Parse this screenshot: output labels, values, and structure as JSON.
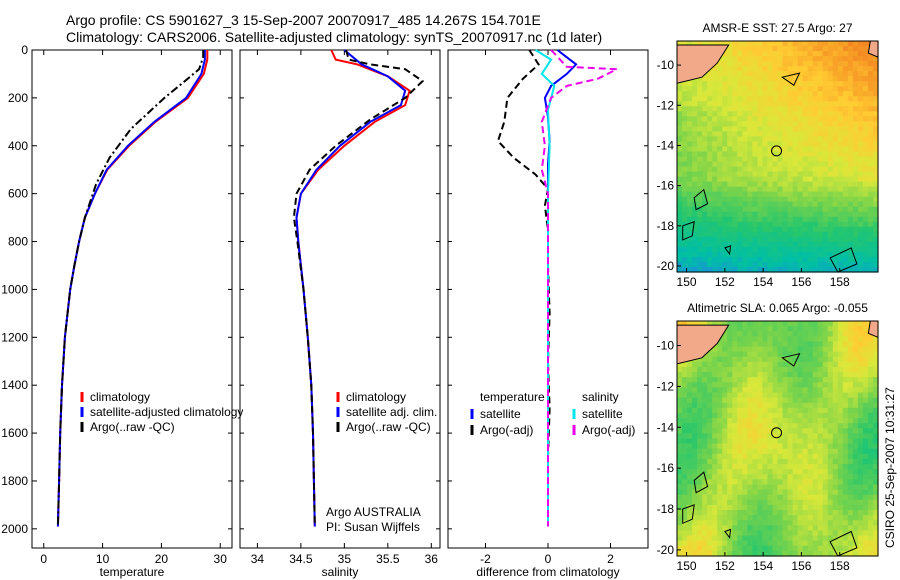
{
  "header": {
    "line1": "Argo profile: CS 5901627_3 15-Sep-2007 20070917_485 14.267S 154.701E",
    "line2": "Climatology: CARS2006. Satellite-adjusted climatology: synTS_20070917.nc (1d later)"
  },
  "side_text": "CSIRO 25-Sep-2007 10:31:27",
  "colors": {
    "red": "#ff0000",
    "blue": "#0000ff",
    "black": "#000000",
    "cyan": "#00e5ee",
    "magenta": "#ee00ee"
  },
  "chart_data": [
    {
      "id": "temperature",
      "type": "line",
      "xlabel": "temperature",
      "xlim": [
        -2,
        32
      ],
      "ylim": [
        2080,
        0
      ],
      "xticks": [
        0,
        10,
        20,
        30
      ],
      "yticks": [
        0,
        200,
        400,
        600,
        800,
        1000,
        1200,
        1400,
        1600,
        1800,
        2000
      ],
      "legend": [
        "climatology",
        "satellite-adjusted climatology",
        "Argo(..raw -QC)"
      ],
      "series": [
        {
          "name": "climatology",
          "color": "red",
          "dash": "solid",
          "points": [
            [
              27.8,
              0
            ],
            [
              27.8,
              40
            ],
            [
              27.2,
              100
            ],
            [
              24.5,
              200
            ],
            [
              19,
              300
            ],
            [
              14.5,
              400
            ],
            [
              10.8,
              500
            ],
            [
              8.7,
              600
            ],
            [
              7,
              700
            ],
            [
              6,
              800
            ],
            [
              5.2,
              900
            ],
            [
              4.5,
              1000
            ],
            [
              3.6,
              1200
            ],
            [
              3.1,
              1400
            ],
            [
              2.8,
              1600
            ],
            [
              2.6,
              1800
            ],
            [
              2.4,
              1990
            ]
          ]
        },
        {
          "name": "satellite-adjusted climatology",
          "color": "blue",
          "dash": "solid",
          "points": [
            [
              27.4,
              0
            ],
            [
              27.4,
              40
            ],
            [
              26.8,
              100
            ],
            [
              24.2,
              200
            ],
            [
              18.8,
              300
            ],
            [
              14.3,
              400
            ],
            [
              10.7,
              500
            ],
            [
              8.7,
              600
            ],
            [
              7,
              700
            ],
            [
              6,
              800
            ],
            [
              5.2,
              900
            ],
            [
              4.5,
              1000
            ],
            [
              3.6,
              1200
            ],
            [
              3.1,
              1400
            ],
            [
              2.8,
              1600
            ],
            [
              2.6,
              1800
            ],
            [
              2.4,
              1990
            ]
          ]
        },
        {
          "name": "Argo(..raw -QC)",
          "color": "black",
          "dash": "dashdot",
          "points": [
            [
              27.1,
              0
            ],
            [
              27.1,
              30
            ],
            [
              26.4,
              80
            ],
            [
              23.5,
              140
            ],
            [
              20.5,
              200
            ],
            [
              14.8,
              330
            ],
            [
              11.2,
              450
            ],
            [
              8.9,
              560
            ],
            [
              7,
              700
            ],
            [
              6,
              800
            ],
            [
              5.2,
              900
            ],
            [
              4.5,
              1000
            ],
            [
              3.6,
              1200
            ],
            [
              3.1,
              1400
            ],
            [
              2.8,
              1600
            ],
            [
              2.6,
              1800
            ],
            [
              2.4,
              1990
            ]
          ]
        }
      ]
    },
    {
      "id": "salinity",
      "type": "line",
      "xlabel": "salinity",
      "xlim": [
        33.8,
        36.1
      ],
      "ylim": [
        2080,
        0
      ],
      "xticks": [
        34,
        34.5,
        35,
        35.5,
        36
      ],
      "yticks": [],
      "legend": [
        "climatology",
        "satellite adj. clim.",
        "Argo(..raw -QC)"
      ],
      "annotations": [
        "Argo AUSTRALIA",
        "PI: Susan Wijffels"
      ],
      "series": [
        {
          "name": "climatology",
          "color": "red",
          "dash": "solid",
          "points": [
            [
              34.85,
              0
            ],
            [
              34.9,
              40
            ],
            [
              35.15,
              60
            ],
            [
              35.5,
              110
            ],
            [
              35.75,
              170
            ],
            [
              35.7,
              230
            ],
            [
              35.35,
              300
            ],
            [
              35.0,
              400
            ],
            [
              34.7,
              500
            ],
            [
              34.5,
              600
            ],
            [
              34.45,
              700
            ],
            [
              34.47,
              800
            ],
            [
              34.53,
              1000
            ],
            [
              34.58,
              1200
            ],
            [
              34.62,
              1400
            ],
            [
              34.64,
              1600
            ],
            [
              34.65,
              1800
            ],
            [
              34.66,
              1990
            ]
          ]
        },
        {
          "name": "satellite adj. clim.",
          "color": "blue",
          "dash": "solid",
          "points": [
            [
              35.0,
              0
            ],
            [
              35.2,
              60
            ],
            [
              35.5,
              110
            ],
            [
              35.7,
              170
            ],
            [
              35.65,
              230
            ],
            [
              35.3,
              300
            ],
            [
              34.95,
              400
            ],
            [
              34.68,
              500
            ],
            [
              34.5,
              600
            ],
            [
              34.45,
              700
            ],
            [
              34.47,
              800
            ],
            [
              34.53,
              1000
            ],
            [
              34.58,
              1200
            ],
            [
              34.62,
              1400
            ],
            [
              34.64,
              1600
            ],
            [
              34.65,
              1800
            ],
            [
              34.66,
              1990
            ]
          ]
        },
        {
          "name": "Argo(..raw -QC)",
          "color": "black",
          "dash": "dashed",
          "points": [
            [
              35.02,
              0
            ],
            [
              35.05,
              40
            ],
            [
              35.3,
              60
            ],
            [
              35.7,
              80
            ],
            [
              35.9,
              130
            ],
            [
              35.7,
              200
            ],
            [
              35.3,
              290
            ],
            [
              34.9,
              400
            ],
            [
              34.6,
              500
            ],
            [
              34.45,
              600
            ],
            [
              34.42,
              700
            ],
            [
              34.46,
              800
            ],
            [
              34.53,
              1000
            ],
            [
              34.58,
              1200
            ],
            [
              34.62,
              1400
            ],
            [
              34.64,
              1600
            ],
            [
              34.65,
              1800
            ],
            [
              34.66,
              1990
            ]
          ]
        }
      ]
    },
    {
      "id": "difference",
      "type": "line",
      "xlabel": "difference from climatology",
      "xlim": [
        -3.2,
        3.2
      ],
      "ylim": [
        2080,
        0
      ],
      "xticks": [
        -2,
        0,
        2
      ],
      "yticks": [],
      "legend_headers": [
        "temperature",
        "salinity"
      ],
      "legend": [
        "satellite",
        "Argo(-adj)",
        "satellite",
        "Argo(-adj)"
      ],
      "series": [
        {
          "name": "temperature satellite",
          "color": "blue",
          "dash": "solid",
          "points": [
            [
              0.3,
              0
            ],
            [
              0.5,
              20
            ],
            [
              0.9,
              60
            ],
            [
              0.6,
              100
            ],
            [
              0.1,
              150
            ],
            [
              -0.1,
              200
            ],
            [
              0,
              280
            ],
            [
              0.05,
              380
            ],
            [
              0,
              480
            ],
            [
              0,
              600
            ],
            [
              0,
              800
            ],
            [
              0,
              1000
            ],
            [
              0,
              1400
            ],
            [
              0,
              1800
            ],
            [
              0,
              1990
            ]
          ]
        },
        {
          "name": "temperature Argo(-adj)",
          "color": "black",
          "dash": "dashed",
          "points": [
            [
              -0.6,
              0
            ],
            [
              -0.3,
              60
            ],
            [
              -0.8,
              120
            ],
            [
              -1.3,
              200
            ],
            [
              -1.4,
              300
            ],
            [
              -1.6,
              380
            ],
            [
              -1.1,
              450
            ],
            [
              -0.4,
              520
            ],
            [
              0,
              580
            ],
            [
              -0.1,
              650
            ],
            [
              0,
              750
            ],
            [
              0,
              900
            ],
            [
              0.05,
              1100
            ],
            [
              0,
              1300
            ],
            [
              0.05,
              1500
            ],
            [
              0,
              1700
            ],
            [
              0,
              1990
            ]
          ]
        },
        {
          "name": "salinity satellite",
          "color": "cyan",
          "dash": "solid",
          "points": [
            [
              -0.4,
              0
            ],
            [
              0.1,
              40
            ],
            [
              -0.2,
              100
            ],
            [
              0.2,
              150
            ],
            [
              0,
              250
            ],
            [
              0.05,
              400
            ],
            [
              0,
              600
            ],
            [
              0,
              800
            ],
            [
              0,
              1000
            ],
            [
              0,
              1400
            ],
            [
              0,
              1800
            ],
            [
              0,
              1990
            ]
          ]
        },
        {
          "name": "salinity Argo(-adj)",
          "color": "magenta",
          "dash": "dashed",
          "points": [
            [
              0.1,
              0
            ],
            [
              0.6,
              70
            ],
            [
              2.2,
              80
            ],
            [
              1.6,
              120
            ],
            [
              0.6,
              150
            ],
            [
              0.1,
              200
            ],
            [
              -0.2,
              300
            ],
            [
              -0.1,
              400
            ],
            [
              -0.2,
              500
            ],
            [
              0,
              600
            ],
            [
              0,
              800
            ],
            [
              0,
              1000
            ],
            [
              0,
              1400
            ],
            [
              0,
              1800
            ],
            [
              0,
              1990
            ]
          ]
        }
      ]
    },
    {
      "id": "sst_map",
      "type": "heatmap",
      "title": "AMSR-E SST: 27.5 Argo: 27",
      "xlim": [
        149.5,
        160
      ],
      "ylim": [
        -20.3,
        -8.8
      ],
      "xticks": [
        150,
        152,
        154,
        156,
        158
      ],
      "yticks": [
        -10,
        -12,
        -14,
        -16,
        -18,
        -20
      ],
      "marker": {
        "lon": 154.7,
        "lat": -14.27
      }
    },
    {
      "id": "sla_map",
      "type": "heatmap",
      "title": "Altimetric SLA: 0.065 Argo: -0.055",
      "xlim": [
        149.5,
        160
      ],
      "ylim": [
        -20.3,
        -8.8
      ],
      "xticks": [
        150,
        152,
        154,
        156,
        158
      ],
      "yticks": [
        -10,
        -12,
        -14,
        -16,
        -18,
        -20
      ],
      "marker": {
        "lon": 154.7,
        "lat": -14.27
      }
    }
  ]
}
